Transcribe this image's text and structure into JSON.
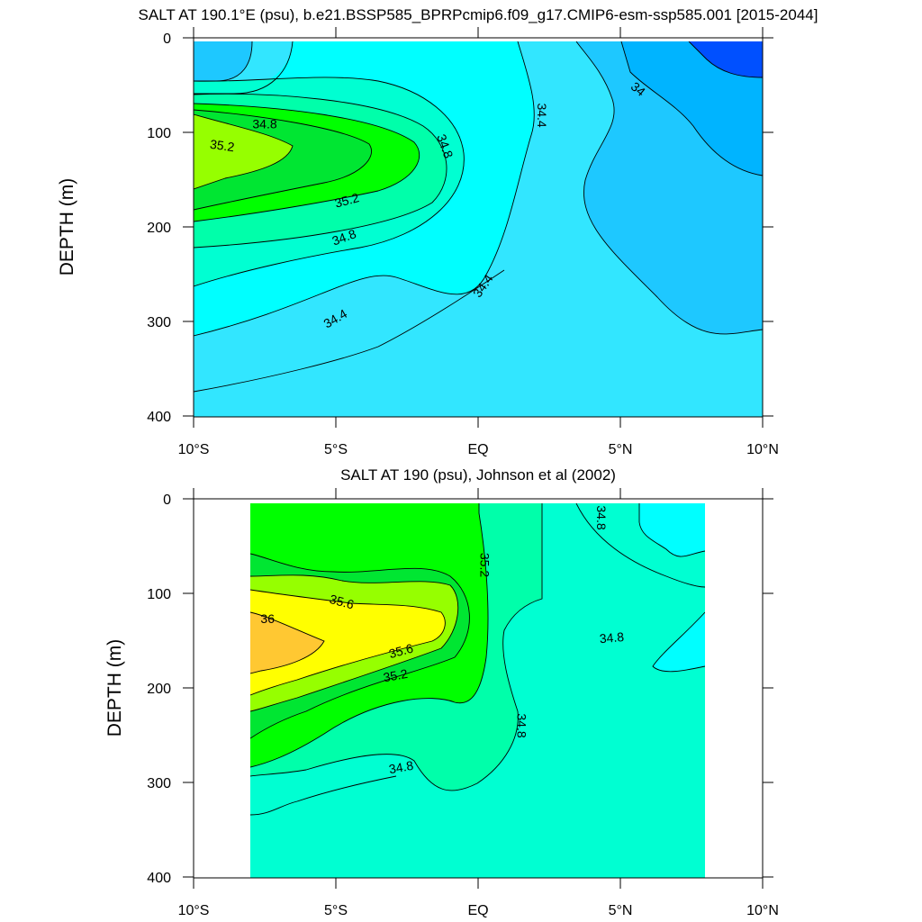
{
  "chart_data": [
    {
      "type": "contour",
      "title": "SALT AT 190.1°E (psu), b.e21.BSSP585_BPRPcmip6.f09_g17.CMIP6-esm-ssp585.001 [2015-2044]",
      "xlabel": "",
      "ylabel": "DEPTH (m)",
      "x_ticks": [
        "10°S",
        "5°S",
        "EQ",
        "5°N",
        "10°N"
      ],
      "y_ticks": [
        "0",
        "100",
        "200",
        "300",
        "400"
      ],
      "xlim": [
        -10,
        10
      ],
      "ylim": [
        400,
        0
      ],
      "y_inverted": true,
      "contour_labels": [
        {
          "text": "34.8",
          "lat": -7.5,
          "depth": 92
        },
        {
          "text": "35.2",
          "lat": -9.0,
          "depth": 115
        },
        {
          "text": "35.2",
          "lat": -4.6,
          "depth": 173
        },
        {
          "text": "34.8",
          "lat": -4.7,
          "depth": 212
        },
        {
          "text": "34.4",
          "lat": -5.0,
          "depth": 298
        },
        {
          "text": "34.8",
          "lat": -1.2,
          "depth": 115
        },
        {
          "text": "34.4",
          "lat": 0.2,
          "depth": 263
        },
        {
          "text": "34.4",
          "lat": 2.2,
          "depth": 82
        },
        {
          "text": "34",
          "lat": 5.6,
          "depth": 55
        }
      ],
      "colors": [
        "#0050ff",
        "#00b4ff",
        "#1ec8ff",
        "#32e6ff",
        "#00ffff",
        "#00ffd2",
        "#00ffaa",
        "#00ff00",
        "#00e632",
        "#96ff00"
      ]
    },
    {
      "type": "contour",
      "title": "SALT AT 190 (psu), Johnson et al (2002)",
      "xlabel": "",
      "ylabel": "DEPTH (m)",
      "x_ticks": [
        "10°S",
        "5°S",
        "EQ",
        "5°N",
        "10°N"
      ],
      "y_ticks": [
        "0",
        "100",
        "200",
        "300",
        "400"
      ],
      "xlim": [
        -10,
        10
      ],
      "ylim": [
        400,
        0
      ],
      "y_inverted": true,
      "data_lon_range": [
        -8,
        8
      ],
      "contour_labels": [
        {
          "text": "35.6",
          "lat": -4.8,
          "depth": 110
        },
        {
          "text": "36",
          "lat": -7.4,
          "depth": 128
        },
        {
          "text": "35.6",
          "lat": -2.7,
          "depth": 162
        },
        {
          "text": "35.2",
          "lat": -2.9,
          "depth": 188
        },
        {
          "text": "34.8",
          "lat": -2.7,
          "depth": 285
        },
        {
          "text": "35.2",
          "lat": 0.2,
          "depth": 70
        },
        {
          "text": "34.8",
          "lat": 1.5,
          "depth": 240
        },
        {
          "text": "34.8",
          "lat": 4.3,
          "depth": 20
        },
        {
          "text": "34.8",
          "lat": 4.7,
          "depth": 148
        }
      ],
      "colors": [
        "#00ffff",
        "#00ffd2",
        "#00ffaa",
        "#00ff00",
        "#00e632",
        "#96ff00",
        "#ffff00",
        "#ffc832"
      ]
    }
  ]
}
